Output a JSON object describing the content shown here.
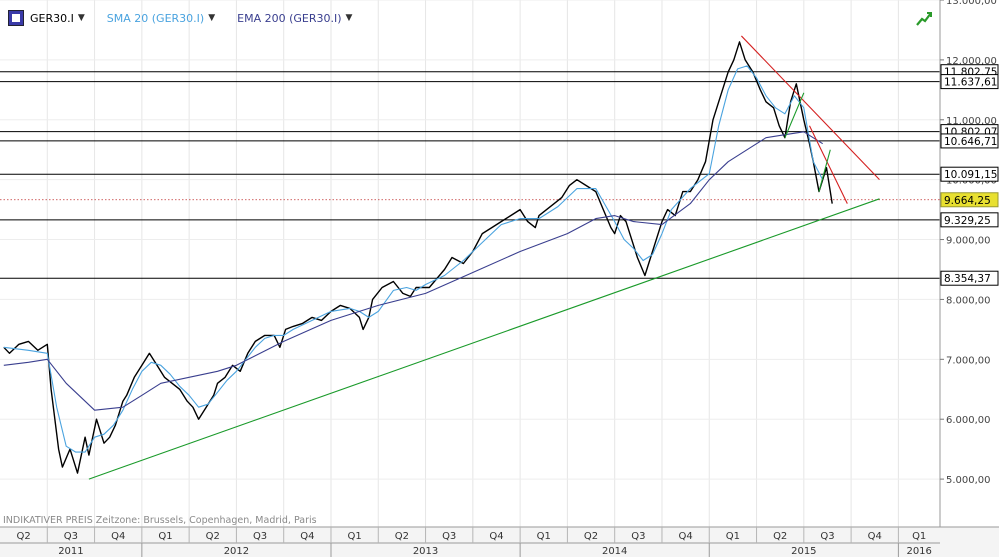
{
  "legend": {
    "symbol": "GER30.I",
    "sma": "SMA 20 (GER30.I)",
    "ema": "EMA 200 (GER30.I)",
    "sma_color": "#4aa3df",
    "ema_color": "#3a3f8f"
  },
  "footer_note": "INDIKATIVER PREIS   Zeitzone: Brussels, Copenhagen, Madrid, Paris",
  "chart_data": {
    "type": "line",
    "ylim": [
      4200,
      13000
    ],
    "y_ticks": [
      {
        "value": 5000,
        "label": "5.000,00"
      },
      {
        "value": 6000,
        "label": "6.000,00"
      },
      {
        "value": 7000,
        "label": "7.000,00"
      },
      {
        "value": 8000,
        "label": "8.000,00"
      },
      {
        "value": 9000,
        "label": "9.000,00"
      },
      {
        "value": 10000,
        "label": "10.000,00"
      },
      {
        "value": 11000,
        "label": "11.000,00"
      },
      {
        "value": 12000,
        "label": "12.000,00"
      },
      {
        "value": 13000,
        "label": "13.000,00"
      }
    ],
    "horizontal_levels": [
      {
        "value": 11802.75,
        "label": "11.802,75"
      },
      {
        "value": 11637.61,
        "label": "11.637,61"
      },
      {
        "value": 10802.07,
        "label": "10.802,07"
      },
      {
        "value": 10646.71,
        "label": "10.646,71"
      },
      {
        "value": 10091.15,
        "label": "10.091,15"
      },
      {
        "value": 9329.25,
        "label": "9.329,25"
      },
      {
        "value": 8354.37,
        "label": "8.354,37"
      }
    ],
    "last_price": {
      "value": 9664.25,
      "label": "9.664,25",
      "color": "#e8e030"
    },
    "quarters": [
      {
        "label": "Q2",
        "start": 2011.25
      },
      {
        "label": "Q3",
        "start": 2011.5
      },
      {
        "label": "Q4",
        "start": 2011.75
      },
      {
        "label": "Q1",
        "start": 2012.0
      },
      {
        "label": "Q2",
        "start": 2012.25
      },
      {
        "label": "Q3",
        "start": 2012.5
      },
      {
        "label": "Q4",
        "start": 2012.75
      },
      {
        "label": "Q1",
        "start": 2013.0
      },
      {
        "label": "Q2",
        "start": 2013.25
      },
      {
        "label": "Q3",
        "start": 2013.5
      },
      {
        "label": "Q4",
        "start": 2013.75
      },
      {
        "label": "Q1",
        "start": 2014.0
      },
      {
        "label": "Q2",
        "start": 2014.25
      },
      {
        "label": "Q3",
        "start": 2014.5
      },
      {
        "label": "Q4",
        "start": 2014.75
      },
      {
        "label": "Q1",
        "start": 2015.0
      },
      {
        "label": "Q2",
        "start": 2015.25
      },
      {
        "label": "Q3",
        "start": 2015.5
      },
      {
        "label": "Q4",
        "start": 2015.75
      },
      {
        "label": "Q1",
        "start": 2016.0
      }
    ],
    "years": [
      {
        "label": "2011",
        "start": 2011.0
      },
      {
        "label": "2012",
        "start": 2012.0
      },
      {
        "label": "2013",
        "start": 2013.0
      },
      {
        "label": "2014",
        "start": 2014.0
      },
      {
        "label": "2015",
        "start": 2015.0
      },
      {
        "label": "2016",
        "start": 2016.0
      }
    ],
    "xlim": [
      2011.25,
      2016.22
    ],
    "series": [
      {
        "color": "#000000",
        "x": [
          2011.27,
          2011.3,
          2011.35,
          2011.4,
          2011.45,
          2011.5,
          2011.52,
          2011.56,
          2011.58,
          2011.62,
          2011.66,
          2011.7,
          2011.72,
          2011.76,
          2011.8,
          2011.83,
          2011.86,
          2011.9,
          2011.92,
          2011.96,
          2012.0,
          2012.04,
          2012.08,
          2012.12,
          2012.16,
          2012.2,
          2012.24,
          2012.27,
          2012.3,
          2012.34,
          2012.38,
          2012.4,
          2012.44,
          2012.48,
          2012.52,
          2012.56,
          2012.6,
          2012.65,
          2012.7,
          2012.73,
          2012.76,
          2012.8,
          2012.85,
          2012.9,
          2012.95,
          2013.0,
          2013.05,
          2013.1,
          2013.15,
          2013.17,
          2013.2,
          2013.22,
          2013.27,
          2013.33,
          2013.38,
          2013.42,
          2013.45,
          2013.47,
          2013.52,
          2013.56,
          2013.6,
          2013.64,
          2013.67,
          2013.7,
          2013.75,
          2013.8,
          2013.85,
          2013.9,
          2013.95,
          2014.0,
          2014.04,
          2014.08,
          2014.1,
          2014.14,
          2014.18,
          2014.22,
          2014.26,
          2014.3,
          2014.35,
          2014.4,
          2014.44,
          2014.48,
          2014.5,
          2014.53,
          2014.56,
          2014.58,
          2014.62,
          2014.66,
          2014.7,
          2014.75,
          2014.78,
          2014.82,
          2014.86,
          2014.9,
          2014.94,
          2014.98,
          2015.02,
          2015.06,
          2015.1,
          2015.13,
          2015.16,
          2015.19,
          2015.23,
          2015.27,
          2015.3,
          2015.34,
          2015.37,
          2015.4,
          2015.43,
          2015.46,
          2015.5,
          2015.53,
          2015.55,
          2015.58,
          2015.6,
          2015.62,
          2015.65
        ],
        "y": [
          7200,
          7100,
          7250,
          7300,
          7150,
          7250,
          6500,
          5500,
          5200,
          5500,
          5100,
          5700,
          5400,
          6000,
          5600,
          5700,
          5900,
          6300,
          6400,
          6700,
          6900,
          7100,
          6900,
          6700,
          6600,
          6500,
          6300,
          6200,
          6000,
          6200,
          6400,
          6600,
          6700,
          6900,
          6800,
          7100,
          7300,
          7400,
          7400,
          7200,
          7500,
          7550,
          7600,
          7700,
          7650,
          7800,
          7900,
          7850,
          7700,
          7500,
          7700,
          8000,
          8200,
          8300,
          8100,
          8050,
          8200,
          8200,
          8200,
          8350,
          8500,
          8700,
          8650,
          8600,
          8800,
          9100,
          9200,
          9300,
          9400,
          9500,
          9300,
          9200,
          9400,
          9500,
          9600,
          9700,
          9900,
          10000,
          9900,
          9800,
          9500,
          9200,
          9100,
          9400,
          9300,
          9100,
          8700,
          8400,
          8800,
          9300,
          9500,
          9400,
          9800,
          9800,
          10000,
          10300,
          11000,
          11400,
          11800,
          12000,
          12300,
          12000,
          11800,
          11500,
          11300,
          11200,
          10900,
          10700,
          11300,
          11600,
          11000,
          10600,
          10300,
          9800,
          10000,
          10200,
          9600
        ]
      },
      {
        "color": "#4aa3df",
        "x": [
          2011.27,
          2011.4,
          2011.5,
          2011.55,
          2011.6,
          2011.65,
          2011.7,
          2011.75,
          2011.8,
          2011.85,
          2011.9,
          2011.95,
          2012.0,
          2012.05,
          2012.1,
          2012.15,
          2012.2,
          2012.25,
          2012.3,
          2012.35,
          2012.4,
          2012.45,
          2012.5,
          2012.55,
          2012.6,
          2012.65,
          2012.7,
          2012.75,
          2012.8,
          2012.9,
          2013.0,
          2013.1,
          2013.15,
          2013.2,
          2013.25,
          2013.33,
          2013.4,
          2013.45,
          2013.5,
          2013.6,
          2013.7,
          2013.8,
          2013.9,
          2014.0,
          2014.1,
          2014.2,
          2014.3,
          2014.4,
          2014.5,
          2014.55,
          2014.6,
          2014.65,
          2014.7,
          2014.75,
          2014.8,
          2014.9,
          2015.0,
          2015.05,
          2015.1,
          2015.15,
          2015.2,
          2015.25,
          2015.3,
          2015.35,
          2015.4,
          2015.45,
          2015.5,
          2015.55,
          2015.6
        ],
        "y": [
          7200,
          7150,
          7100,
          6200,
          5550,
          5450,
          5450,
          5700,
          5750,
          5900,
          6150,
          6500,
          6800,
          6950,
          6900,
          6750,
          6550,
          6400,
          6200,
          6250,
          6450,
          6650,
          6800,
          7000,
          7200,
          7350,
          7400,
          7400,
          7500,
          7650,
          7800,
          7850,
          7800,
          7700,
          7800,
          8150,
          8200,
          8150,
          8250,
          8400,
          8650,
          8950,
          9250,
          9350,
          9350,
          9550,
          9850,
          9850,
          9300,
          9000,
          8850,
          8650,
          8750,
          9100,
          9500,
          9850,
          10100,
          10900,
          11500,
          11850,
          11900,
          11700,
          11400,
          11200,
          11100,
          11400,
          11200,
          10300,
          10000
        ]
      },
      {
        "color": "#3a3f8f",
        "x": [
          2011.27,
          2011.4,
          2011.5,
          2011.6,
          2011.75,
          2011.9,
          2012.0,
          2012.1,
          2012.25,
          2012.4,
          2012.5,
          2012.75,
          2013.0,
          2013.25,
          2013.5,
          2013.75,
          2014.0,
          2014.25,
          2014.4,
          2014.5,
          2014.6,
          2014.75,
          2014.9,
          2015.0,
          2015.1,
          2015.2,
          2015.3,
          2015.4,
          2015.5,
          2015.6
        ],
        "y": [
          6900,
          6950,
          7000,
          6600,
          6150,
          6200,
          6400,
          6600,
          6700,
          6800,
          6900,
          7300,
          7650,
          7900,
          8100,
          8450,
          8800,
          9100,
          9350,
          9400,
          9300,
          9250,
          9600,
          10000,
          10300,
          10500,
          10700,
          10750,
          10800,
          10600
        ]
      }
    ],
    "trendlines": [
      {
        "color": "#1a9a2a",
        "x": [
          2011.72,
          2015.9
        ],
        "y": [
          5000,
          9680
        ]
      },
      {
        "color": "#d42020",
        "x": [
          2015.17,
          2015.9
        ],
        "y": [
          12400,
          10000
        ]
      },
      {
        "color": "#d42020",
        "x": [
          2015.53,
          2015.73
        ],
        "y": [
          10900,
          9600
        ]
      },
      {
        "color": "#1a9a2a",
        "x": [
          2015.4,
          2015.5
        ],
        "y": [
          10700,
          11450
        ]
      },
      {
        "color": "#1a9a2a",
        "x": [
          2015.58,
          2015.64
        ],
        "y": [
          9800,
          10500
        ]
      }
    ]
  }
}
